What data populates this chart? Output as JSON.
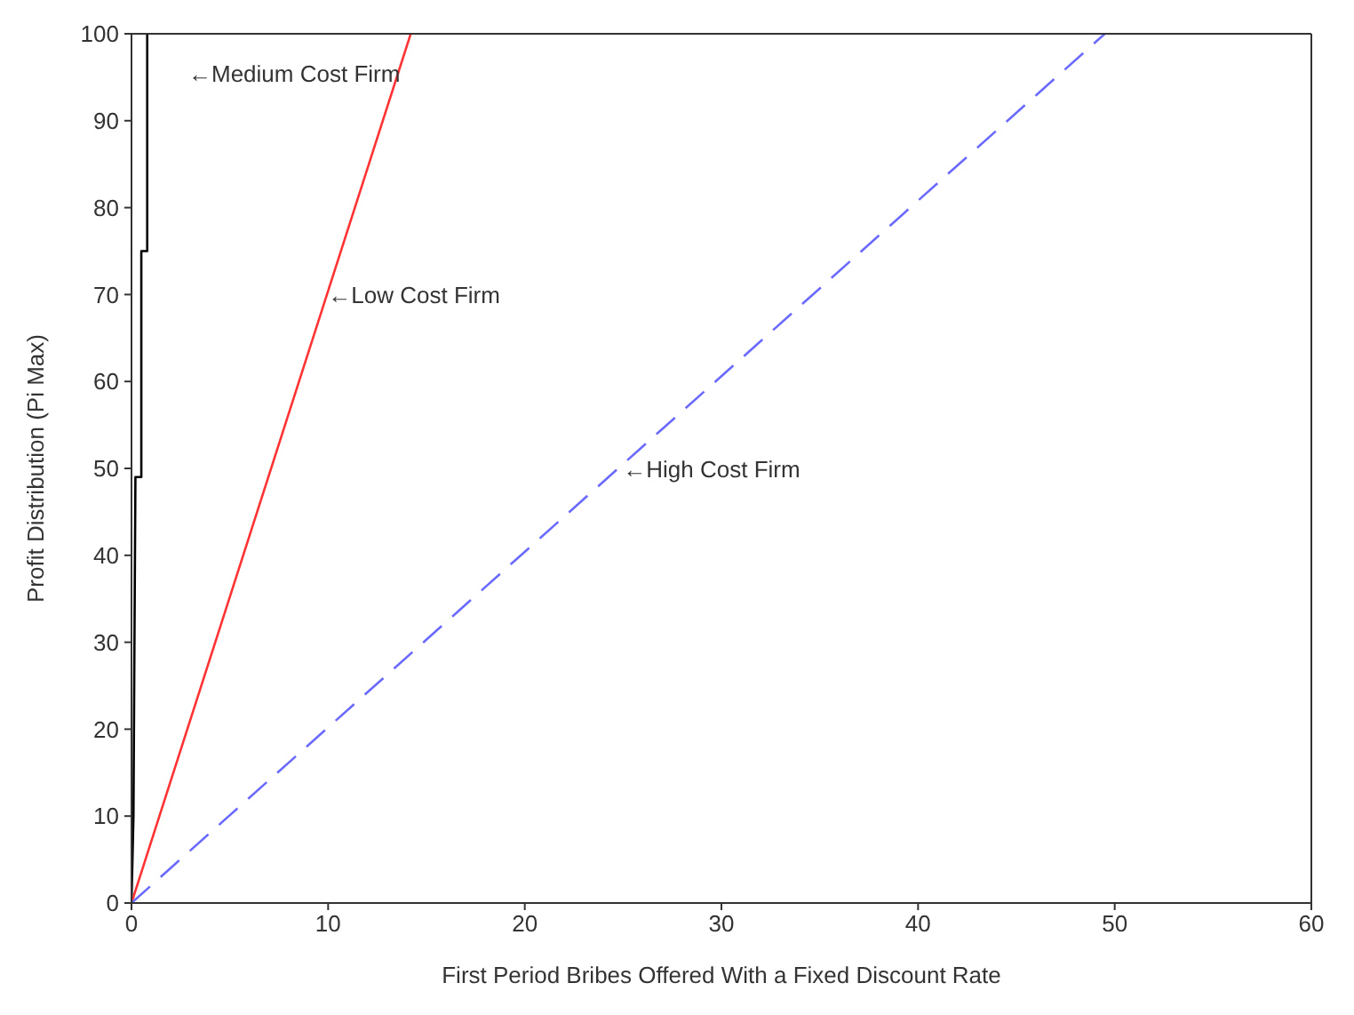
{
  "chart_data": {
    "type": "line",
    "xlabel": "First Period Bribes Offered With a Fixed Discount Rate",
    "ylabel": "Profit Distribution (Pi Max)",
    "xlim": [
      0,
      60
    ],
    "xticks": [
      0,
      10,
      20,
      30,
      40,
      50,
      60
    ],
    "ylim": [
      0,
      100
    ],
    "yticks": [
      0,
      10,
      20,
      30,
      40,
      50,
      60,
      70,
      80,
      90,
      100
    ],
    "series": [
      {
        "color": "#000000",
        "line_style": "solid",
        "x": [
          0,
          0.1,
          0.2,
          0.5,
          0.5,
          0.8,
          0.8
        ],
        "values": [
          0,
          10,
          49,
          49,
          75,
          75,
          100
        ]
      },
      {
        "color": "#ff3333",
        "line_style": "solid",
        "x": [
          0,
          14.2
        ],
        "values": [
          0,
          100
        ]
      },
      {
        "color": "#6a6aff",
        "line_style": "dashed",
        "x": [
          0,
          49.5
        ],
        "values": [
          0,
          100
        ]
      }
    ],
    "annotations": [
      "←Medium Cost Firm",
      {
        "text": "←Low Cost Firm",
        "x": 10,
        "y": 70
      },
      {
        "text": "←High Cost Firm",
        "x": 25,
        "y": 50
      }
    ]
  }
}
